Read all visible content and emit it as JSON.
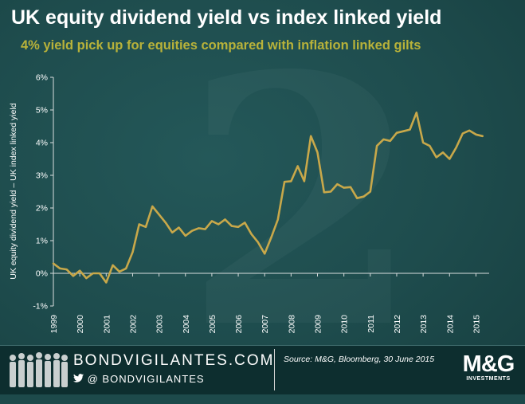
{
  "title": "UK equity dividend yield vs index linked yield",
  "subtitle": "4% yield pick up for equities compared with inflation linked gilts",
  "colors": {
    "background": "#1d4a4b",
    "line": "#c8a84a",
    "subtitle": "#b8b23a",
    "axis_text": "#ffffff",
    "footer": "#0d2e2f"
  },
  "chart_data": {
    "type": "line",
    "title": "UK equity dividend yield vs index linked yield",
    "subtitle": "4% yield pick up for equities compared with inflation linked gilts",
    "xlabel": "",
    "ylabel": "UK equity dividend yield – UK index linked yield",
    "xlim": [
      1999,
      2015.5
    ],
    "ylim": [
      -1,
      6
    ],
    "y_ticks": [
      -1,
      0,
      1,
      2,
      3,
      4,
      5,
      6
    ],
    "y_tick_labels": [
      "-1%",
      "0%",
      "1%",
      "2%",
      "3%",
      "4%",
      "5%",
      "6%"
    ],
    "x_ticks": [
      1999,
      2000,
      2001,
      2002,
      2003,
      2004,
      2005,
      2006,
      2007,
      2008,
      2009,
      2010,
      2011,
      2012,
      2013,
      2014,
      2015
    ],
    "x_tick_labels": [
      "1999",
      "2000",
      "2001",
      "2002",
      "2003",
      "2004",
      "2005",
      "2006",
      "2007",
      "2008",
      "2009",
      "2010",
      "2011",
      "2012",
      "2013",
      "2014",
      "2015"
    ],
    "grid": false,
    "legend": "none",
    "series": [
      {
        "x": [
          1999.0,
          1999.25,
          1999.5,
          1999.75,
          2000.0,
          2000.25,
          2000.5,
          2000.75,
          2001.0,
          2001.25,
          2001.5,
          2001.75,
          2002.0,
          2002.25,
          2002.5,
          2002.75,
          2003.0,
          2003.25,
          2003.5,
          2003.75,
          2004.0,
          2004.25,
          2004.5,
          2004.75,
          2005.0,
          2005.25,
          2005.5,
          2005.75,
          2006.0,
          2006.25,
          2006.5,
          2006.75,
          2007.0,
          2007.25,
          2007.5,
          2007.75,
          2008.0,
          2008.25,
          2008.5,
          2008.75,
          2009.0,
          2009.25,
          2009.5,
          2009.75,
          2010.0,
          2010.25,
          2010.5,
          2010.75,
          2011.0,
          2011.25,
          2011.5,
          2011.75,
          2012.0,
          2012.25,
          2012.5,
          2012.75,
          2013.0,
          2013.25,
          2013.5,
          2013.75,
          2014.0,
          2014.25,
          2014.5,
          2014.75,
          2015.0,
          2015.25
        ],
        "values": [
          0.3,
          0.15,
          0.12,
          -0.08,
          0.08,
          -0.15,
          0.0,
          0.0,
          -0.28,
          0.25,
          0.05,
          0.15,
          0.65,
          1.5,
          1.42,
          2.05,
          1.8,
          1.55,
          1.25,
          1.4,
          1.15,
          1.3,
          1.38,
          1.35,
          1.6,
          1.5,
          1.65,
          1.45,
          1.42,
          1.55,
          1.2,
          0.95,
          0.6,
          1.1,
          1.65,
          2.8,
          2.82,
          3.28,
          2.82,
          4.2,
          3.7,
          2.48,
          2.5,
          2.73,
          2.62,
          2.64,
          2.3,
          2.35,
          2.5,
          3.9,
          4.1,
          4.05,
          4.3,
          4.35,
          4.4,
          4.92,
          4.0,
          3.9,
          3.55,
          3.7,
          3.5,
          3.85,
          4.28,
          4.37,
          4.25,
          4.2
        ]
      }
    ]
  },
  "footer": {
    "brand": "BONDVIGILANTES.COM",
    "handle": "@ BONDVIGILANTES",
    "source": "Source: M&G, Bloomberg, 30 June 2015",
    "logo_main": "M&G",
    "logo_sub": "INVESTMENTS"
  }
}
